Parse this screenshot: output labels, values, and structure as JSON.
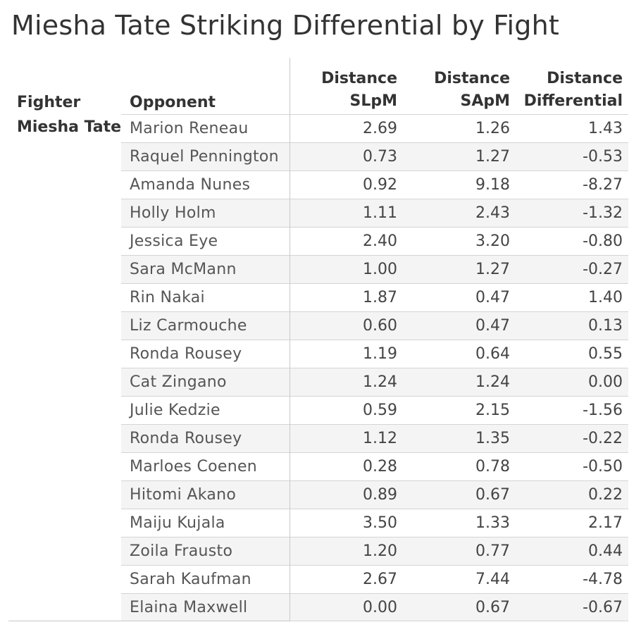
{
  "title": "Miesha Tate Striking Differential by Fight",
  "headers": {
    "fighter": "Fighter",
    "opponent": "Opponent",
    "slpm_line1": "Distance",
    "slpm_line2": "SLpM",
    "sapm_line1": "Distance",
    "sapm_line2": "SApM",
    "diff_line1": "Distance",
    "diff_line2": "Differential"
  },
  "fighter_name": "Miesha Tate",
  "chart_data": {
    "type": "table",
    "title": "Miesha Tate Striking Differential by Fight",
    "columns": [
      "Fighter",
      "Opponent",
      "Distance SLpM",
      "Distance SApM",
      "Distance Differential"
    ],
    "fighter": "Miesha Tate",
    "rows": [
      {
        "opponent": "Marion Reneau",
        "slpm": "2.69",
        "sapm": "1.26",
        "diff": "1.43"
      },
      {
        "opponent": "Raquel Pennington",
        "slpm": "0.73",
        "sapm": "1.27",
        "diff": "-0.53"
      },
      {
        "opponent": "Amanda Nunes",
        "slpm": "0.92",
        "sapm": "9.18",
        "diff": "-8.27"
      },
      {
        "opponent": "Holly Holm",
        "slpm": "1.11",
        "sapm": "2.43",
        "diff": "-1.32"
      },
      {
        "opponent": "Jessica Eye",
        "slpm": "2.40",
        "sapm": "3.20",
        "diff": "-0.80"
      },
      {
        "opponent": "Sara McMann",
        "slpm": "1.00",
        "sapm": "1.27",
        "diff": "-0.27"
      },
      {
        "opponent": "Rin Nakai",
        "slpm": "1.87",
        "sapm": "0.47",
        "diff": "1.40"
      },
      {
        "opponent": "Liz Carmouche",
        "slpm": "0.60",
        "sapm": "0.47",
        "diff": "0.13"
      },
      {
        "opponent": "Ronda Rousey",
        "slpm": "1.19",
        "sapm": "0.64",
        "diff": "0.55"
      },
      {
        "opponent": "Cat Zingano",
        "slpm": "1.24",
        "sapm": "1.24",
        "diff": "0.00"
      },
      {
        "opponent": "Julie Kedzie",
        "slpm": "0.59",
        "sapm": "2.15",
        "diff": "-1.56"
      },
      {
        "opponent": "Ronda Rousey",
        "slpm": "1.12",
        "sapm": "1.35",
        "diff": "-0.22"
      },
      {
        "opponent": "Marloes Coenen",
        "slpm": "0.28",
        "sapm": "0.78",
        "diff": "-0.50"
      },
      {
        "opponent": "Hitomi Akano",
        "slpm": "0.89",
        "sapm": "0.67",
        "diff": "0.22"
      },
      {
        "opponent": "Maiju Kujala",
        "slpm": "3.50",
        "sapm": "1.33",
        "diff": "2.17"
      },
      {
        "opponent": "Zoila Frausto",
        "slpm": "1.20",
        "sapm": "0.77",
        "diff": "0.44"
      },
      {
        "opponent": "Sarah Kaufman",
        "slpm": "2.67",
        "sapm": "7.44",
        "diff": "-4.78"
      },
      {
        "opponent": "Elaina Maxwell",
        "slpm": "0.00",
        "sapm": "0.67",
        "diff": "-0.67"
      }
    ]
  }
}
